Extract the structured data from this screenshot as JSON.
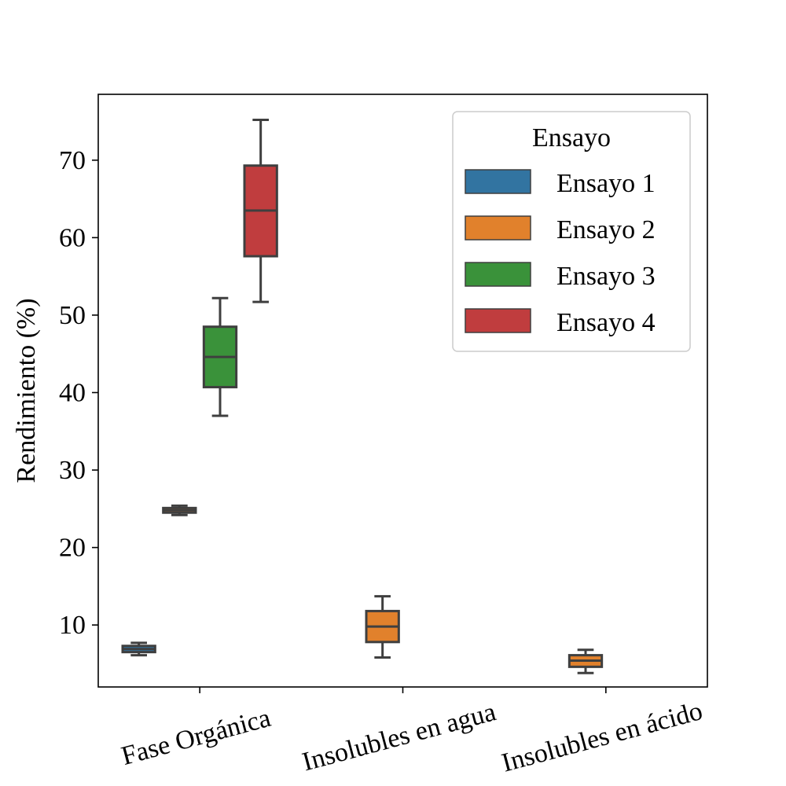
{
  "chart_data": {
    "type": "box",
    "title": "",
    "xlabel": "",
    "ylabel": "Rendimiento (%)",
    "categories": [
      "Fase Orgánica",
      "Insolubles en agua",
      "Insolubles en ácido"
    ],
    "ylim": [
      2.0,
      78.5
    ],
    "yticks": [
      10,
      20,
      30,
      40,
      50,
      60,
      70
    ],
    "grid": false,
    "legend": {
      "title": "Ensayo",
      "position": "top-right"
    },
    "series": [
      {
        "name": "Ensayo 1",
        "color": "#3274a1",
        "boxes": [
          {
            "category": "Fase Orgánica",
            "whisker_low": 6.1,
            "q1": 6.5,
            "median": 6.9,
            "q3": 7.3,
            "whisker_high": 7.7
          },
          null,
          null
        ]
      },
      {
        "name": "Ensayo 2",
        "color": "#e1812c",
        "boxes": [
          {
            "category": "Fase Orgánica",
            "whisker_low": 24.2,
            "q1": 24.5,
            "median": 24.8,
            "q3": 25.1,
            "whisker_high": 25.4
          },
          {
            "category": "Insolubles en agua",
            "whisker_low": 5.8,
            "q1": 7.8,
            "median": 9.8,
            "q3": 11.8,
            "whisker_high": 13.7
          },
          {
            "category": "Insolubles en ácido",
            "whisker_low": 3.8,
            "q1": 4.6,
            "median": 5.4,
            "q3": 6.1,
            "whisker_high": 6.8
          }
        ]
      },
      {
        "name": "Ensayo 3",
        "color": "#3a923a",
        "boxes": [
          {
            "category": "Fase Orgánica",
            "whisker_low": 37.0,
            "q1": 40.7,
            "median": 44.6,
            "q3": 48.5,
            "whisker_high": 52.2
          },
          null,
          null
        ]
      },
      {
        "name": "Ensayo 4",
        "color": "#c03d3e",
        "boxes": [
          {
            "category": "Fase Orgánica",
            "whisker_low": 51.7,
            "q1": 57.6,
            "median": 63.5,
            "q3": 69.3,
            "whisker_high": 75.2
          },
          null,
          null
        ]
      }
    ]
  }
}
